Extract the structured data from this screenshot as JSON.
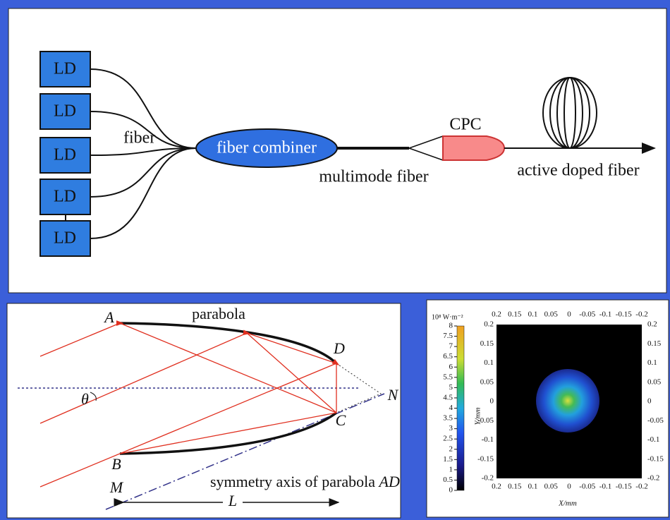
{
  "top_panel": {
    "lasers": [
      "LD",
      "LD",
      "LD",
      "LD",
      "LD"
    ],
    "fiber_label": "fiber",
    "combiner": "fiber combiner",
    "multimode_label": "multimode fiber",
    "cpc": "CPC",
    "active_label": "active doped fiber"
  },
  "parabola_panel": {
    "points": {
      "A": "A",
      "B": "B",
      "C": "C",
      "D": "D",
      "N": "N",
      "M": "M"
    },
    "theta": "θ",
    "length": "L",
    "parabola_label": "parabola",
    "axis_label_text": "symmetry axis of parabola",
    "axis_label_symbol": "AD"
  },
  "intensity_panel": {
    "colorbar_unit": "10⁸ W·m⁻²",
    "colorbar_ticks": [
      "0",
      "0.5",
      "1",
      "1.5",
      "2",
      "2.5",
      "3",
      "3.5",
      "4",
      "4.5",
      "5",
      "5.5",
      "6",
      "6.5",
      "7",
      "7.5",
      "8"
    ],
    "x_ticks": [
      "0.2",
      "0.15",
      "0.1",
      "0.05",
      "0",
      "-0.05",
      "-0.1",
      "-0.15",
      "-0.2"
    ],
    "y_ticks": [
      "0.2",
      "0.15",
      "0.1",
      "0.05",
      "0",
      "-0.05",
      "-0.1",
      "-0.15",
      "-0.2"
    ],
    "x_label": "X/mm",
    "y_label": "Y/mm"
  }
}
